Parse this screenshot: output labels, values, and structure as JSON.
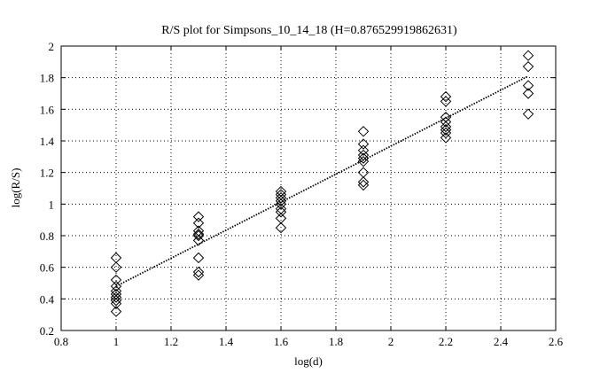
{
  "chart_data": {
    "type": "scatter",
    "title": "R/S plot for Simpsons_10_14_18 (H=0.876529919862631)",
    "xlabel": "log(d)",
    "ylabel": "log(R/S)",
    "xlim": [
      0.8,
      2.6
    ],
    "ylim": [
      0.2,
      2.0
    ],
    "xticks": [
      0.8,
      1,
      1.2,
      1.4,
      1.6,
      1.8,
      2,
      2.2,
      2.4,
      2.6
    ],
    "yticks": [
      0.2,
      0.4,
      0.6,
      0.8,
      1,
      1.2,
      1.4,
      1.6,
      1.8,
      2
    ],
    "xtick_labels": [
      "0.8",
      "1",
      "1.2",
      "1.4",
      "1.6",
      "1.8",
      "2",
      "2.2",
      "2.4",
      "2.6"
    ],
    "ytick_labels": [
      "0.2",
      "0.4",
      "0.6",
      "0.8",
      "1",
      "1.2",
      "1.4",
      "1.6",
      "1.8",
      "2"
    ],
    "grid": true,
    "marker": "diamond",
    "points": [
      {
        "x": 1.0,
        "y": 0.66
      },
      {
        "x": 1.0,
        "y": 0.6
      },
      {
        "x": 1.0,
        "y": 0.52
      },
      {
        "x": 1.0,
        "y": 0.48
      },
      {
        "x": 1.0,
        "y": 0.45
      },
      {
        "x": 1.0,
        "y": 0.43
      },
      {
        "x": 1.0,
        "y": 0.41
      },
      {
        "x": 1.0,
        "y": 0.39
      },
      {
        "x": 1.0,
        "y": 0.37
      },
      {
        "x": 1.0,
        "y": 0.32
      },
      {
        "x": 1.3,
        "y": 0.92
      },
      {
        "x": 1.3,
        "y": 0.88
      },
      {
        "x": 1.3,
        "y": 0.83
      },
      {
        "x": 1.3,
        "y": 0.81
      },
      {
        "x": 1.3,
        "y": 0.8
      },
      {
        "x": 1.3,
        "y": 0.77
      },
      {
        "x": 1.3,
        "y": 0.66
      },
      {
        "x": 1.3,
        "y": 0.57
      },
      {
        "x": 1.3,
        "y": 0.55
      },
      {
        "x": 1.6,
        "y": 1.08
      },
      {
        "x": 1.6,
        "y": 1.06
      },
      {
        "x": 1.6,
        "y": 1.04
      },
      {
        "x": 1.6,
        "y": 1.02
      },
      {
        "x": 1.6,
        "y": 1.0
      },
      {
        "x": 1.6,
        "y": 0.97
      },
      {
        "x": 1.6,
        "y": 0.95
      },
      {
        "x": 1.6,
        "y": 0.91
      },
      {
        "x": 1.6,
        "y": 0.85
      },
      {
        "x": 1.9,
        "y": 1.46
      },
      {
        "x": 1.9,
        "y": 1.38
      },
      {
        "x": 1.9,
        "y": 1.34
      },
      {
        "x": 1.9,
        "y": 1.31
      },
      {
        "x": 1.9,
        "y": 1.29
      },
      {
        "x": 1.9,
        "y": 1.27
      },
      {
        "x": 1.9,
        "y": 1.2
      },
      {
        "x": 1.9,
        "y": 1.14
      },
      {
        "x": 1.9,
        "y": 1.12
      },
      {
        "x": 2.2,
        "y": 1.68
      },
      {
        "x": 2.2,
        "y": 1.65
      },
      {
        "x": 2.2,
        "y": 1.55
      },
      {
        "x": 2.2,
        "y": 1.52
      },
      {
        "x": 2.2,
        "y": 1.49
      },
      {
        "x": 2.2,
        "y": 1.47
      },
      {
        "x": 2.2,
        "y": 1.45
      },
      {
        "x": 2.2,
        "y": 1.42
      },
      {
        "x": 2.5,
        "y": 1.94
      },
      {
        "x": 2.5,
        "y": 1.87
      },
      {
        "x": 2.5,
        "y": 1.75
      },
      {
        "x": 2.5,
        "y": 1.7
      },
      {
        "x": 2.5,
        "y": 1.57
      }
    ],
    "fit_line": {
      "x": [
        1.0,
        2.5
      ],
      "y": [
        0.48,
        1.81
      ],
      "style": "dotted"
    }
  }
}
